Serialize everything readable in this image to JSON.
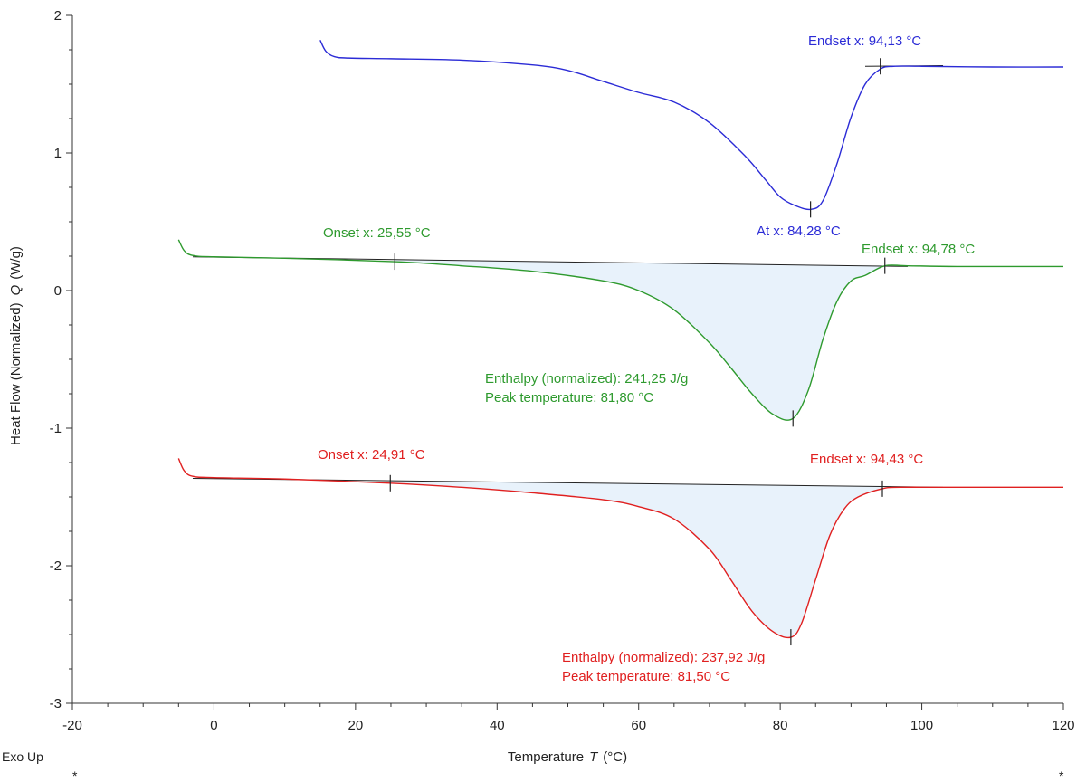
{
  "chart_data": {
    "type": "line",
    "xlabel": "Temperature",
    "xlabel_symbol": "T",
    "xlabel_unit": "(°C)",
    "ylabel": "Heat Flow (Normalized)",
    "ylabel_symbol": "Q",
    "ylabel_unit": "(W/g)",
    "xlim": [
      -20,
      120
    ],
    "ylim": [
      -3,
      2
    ],
    "x_ticks": [
      "-20",
      "0",
      "20",
      "40",
      "60",
      "80",
      "100",
      "120"
    ],
    "y_ticks": [
      "2",
      "1",
      "0",
      "-1",
      "-2",
      "-3"
    ],
    "grid": false,
    "legend": "none",
    "corner_label": "Exo Up",
    "corner_marks": [
      "*",
      "*"
    ],
    "series": [
      {
        "color": "#2b2bd6",
        "x": [
          15.0,
          15.8,
          17.0,
          19.0,
          25,
          35,
          45,
          50,
          55,
          60,
          65,
          70,
          75,
          78,
          80,
          82,
          84.3,
          86,
          88,
          90,
          92,
          94.13,
          96,
          100,
          110,
          120
        ],
        "y": [
          1.82,
          1.74,
          1.7,
          1.69,
          1.685,
          1.675,
          1.64,
          1.6,
          1.52,
          1.44,
          1.37,
          1.22,
          0.98,
          0.8,
          0.68,
          0.62,
          0.59,
          0.65,
          0.92,
          1.26,
          1.5,
          1.61,
          1.63,
          1.63,
          1.625,
          1.625
        ],
        "annotations": [
          {
            "text": "Endset x: 94,13 °C",
            "x": 94.13,
            "y": 1.63,
            "kind": "endset"
          },
          {
            "text": "At x: 84,28 °C",
            "x": 84.28,
            "y": 0.59,
            "kind": "peak"
          }
        ],
        "baseline": {
          "x1": 92,
          "y1": 1.63,
          "x2": 103,
          "y2": 1.635
        }
      },
      {
        "color": "#2e9a2e",
        "x": [
          -5.0,
          -4.2,
          -3.0,
          0,
          10,
          25.55,
          35,
          45,
          55,
          60,
          65,
          70,
          73,
          76,
          79,
          81.8,
          84,
          86,
          88,
          90,
          92,
          94.78,
          98,
          105,
          120
        ],
        "y": [
          0.37,
          0.29,
          0.255,
          0.245,
          0.235,
          0.21,
          0.18,
          0.14,
          0.07,
          0.0,
          -0.14,
          -0.38,
          -0.56,
          -0.75,
          -0.9,
          -0.93,
          -0.72,
          -0.36,
          -0.08,
          0.07,
          0.11,
          0.18,
          0.18,
          0.175,
          0.175
        ],
        "annotations": [
          {
            "text": "Onset x: 25,55 °C",
            "x": 25.55,
            "y": 0.21,
            "kind": "onset"
          },
          {
            "text": "Endset x: 94,78 °C",
            "x": 94.78,
            "y": 0.18,
            "kind": "endset"
          },
          {
            "text": "Enthalpy (normalized): 241,25 J/g",
            "kind": "enthalpy"
          },
          {
            "text": "Peak temperature: 81,80 °C",
            "x": 81.8,
            "y": -0.93,
            "kind": "peak"
          }
        ],
        "baseline": {
          "x1": -3,
          "y1": 0.245,
          "x2": 98,
          "y2": 0.175
        }
      },
      {
        "color": "#e02020",
        "x": [
          -5.0,
          -4.2,
          -3.0,
          0,
          10,
          24.91,
          35,
          45,
          55,
          60,
          65,
          70,
          73,
          76,
          79,
          81.5,
          83,
          85,
          87,
          89,
          91,
          94.43,
          97,
          105,
          120
        ],
        "y": [
          -1.22,
          -1.31,
          -1.35,
          -1.36,
          -1.37,
          -1.4,
          -1.43,
          -1.47,
          -1.52,
          -1.57,
          -1.66,
          -1.88,
          -2.1,
          -2.33,
          -2.48,
          -2.52,
          -2.42,
          -2.1,
          -1.78,
          -1.59,
          -1.5,
          -1.44,
          -1.43,
          -1.43,
          -1.43
        ],
        "annotations": [
          {
            "text": "Onset x: 24,91 °C",
            "x": 24.91,
            "y": -1.4,
            "kind": "onset"
          },
          {
            "text": "Endset x: 94,43 °C",
            "x": 94.43,
            "y": -1.44,
            "kind": "endset"
          },
          {
            "text": "Enthalpy (normalized): 237,92 J/g",
            "kind": "enthalpy"
          },
          {
            "text": "Peak temperature: 81,50 °C",
            "x": 81.5,
            "y": -2.52,
            "kind": "peak"
          }
        ],
        "baseline": {
          "x1": -3,
          "y1": -1.365,
          "x2": 103,
          "y2": -1.43
        }
      }
    ],
    "fill_color": "#e8f2fb"
  }
}
